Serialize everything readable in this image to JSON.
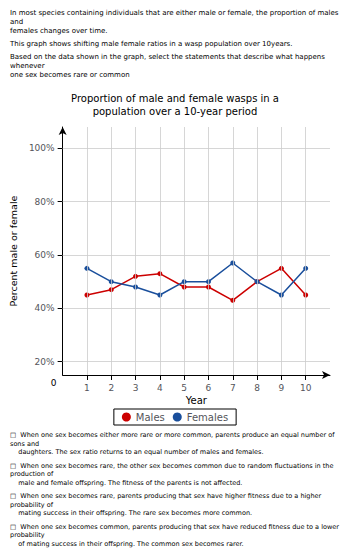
{
  "chart_data": {
    "type": "line",
    "title": "Proportion of male and female wasps in a\npopulation over a 10-year period",
    "xlabel": "Year",
    "ylabel": "Percent male or female",
    "x": [
      1,
      2,
      3,
      4,
      5,
      6,
      7,
      8,
      9,
      10
    ],
    "series": [
      {
        "name": "Males",
        "color": "#cc0000",
        "marker": "circle",
        "values": [
          45,
          47,
          52,
          53,
          48,
          48,
          43,
          50,
          55,
          45
        ]
      },
      {
        "name": "Females",
        "color": "#1a4f9c",
        "marker": "circle",
        "values": [
          55,
          50,
          48,
          45,
          50,
          50,
          57,
          50,
          45,
          55
        ]
      }
    ],
    "xlim": [
      0,
      11
    ],
    "xticks": [
      1,
      2,
      3,
      4,
      5,
      6,
      7,
      8,
      9,
      10
    ],
    "ylim": [
      15,
      108
    ],
    "yticks": [
      {
        "value": 20,
        "label": "20%"
      },
      {
        "value": 40,
        "label": "40%"
      },
      {
        "value": 60,
        "label": "60%"
      },
      {
        "value": 80,
        "label": "80%"
      },
      {
        "value": 100,
        "label": "100%"
      }
    ],
    "grid": true,
    "legend": "bottom",
    "annotations": [
      {
        "text": "In most species containing individuals that are either male or female, the proportion of males and\nfemales changes over time.",
        "position": "top"
      },
      {
        "text": "This graph shows shifting male female ratios in a wasp population over 10years.",
        "position": "top"
      },
      {
        "text": "Based on the data shown in the graph, select the statements that describe what happens whenever\none sex becomes rare or common",
        "position": "top"
      },
      {
        "text": "0",
        "position": "origin"
      },
      {
        "text": "□  When one sex becomes either more rare or more common, parents produce an equal number of sons and\n    daughters. The sex ratio returns to an equal number of males and females.",
        "position": "bottom"
      },
      {
        "text": "□  When one sex becomes rare, the other sex becomes common due to random fluctuations in the production of\n    male and female offspring. The fitness of the parents is not affected.",
        "position": "bottom"
      },
      {
        "text": "□  When one sex becomes rare, parents producing that sex have higher fitness due to a higher probability of\n    mating success in their offspring. The rare sex becomes more common.",
        "position": "bottom"
      },
      {
        "text": "□  When one sex becomes common, parents producing that sex have reduced fitness due to a lower probability\n    of mating success in their offspring. The common sex becomes rarer.",
        "position": "bottom"
      }
    ]
  }
}
